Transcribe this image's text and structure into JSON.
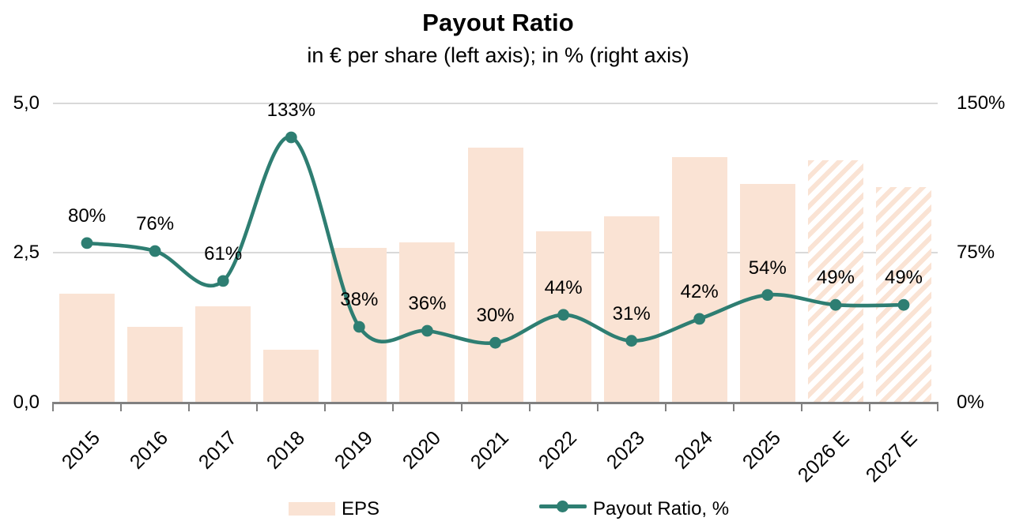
{
  "title": "Payout Ratio",
  "subtitle": "in € per share (left axis); in % (right axis)",
  "left_axis": {
    "ticks": [
      "5,0",
      "2,5",
      "0,0"
    ]
  },
  "right_axis": {
    "ticks": [
      "150%",
      "75%",
      "0%"
    ]
  },
  "legend": {
    "eps_label": "EPS",
    "payout_label": "Payout Ratio, %"
  },
  "colors": {
    "bar": "#FAE3D4",
    "line": "#2E7E72",
    "grid": "#D9D9D9",
    "axis": "#808080",
    "text": "#000000"
  },
  "chart_data": {
    "type": "bar+line combo",
    "categories": [
      "2015",
      "2016",
      "2017",
      "2018",
      "2019",
      "2020",
      "2021",
      "2022",
      "2023",
      "2024",
      "2025",
      "2026 E",
      "2027 E"
    ],
    "series": [
      {
        "name": "EPS",
        "type": "bar",
        "axis": "left",
        "values": [
          1.82,
          1.27,
          1.61,
          0.88,
          2.59,
          2.68,
          4.26,
          2.87,
          3.11,
          4.1,
          3.65,
          4.05,
          3.6
        ],
        "forecast_from_index": 11,
        "forecast_style": "hatched"
      },
      {
        "name": "Payout Ratio, %",
        "type": "line",
        "axis": "right",
        "values": [
          80,
          76,
          61,
          133,
          38,
          36,
          30,
          44,
          31,
          42,
          54,
          49,
          49
        ],
        "labels": [
          "80%",
          "76%",
          "61%",
          "133%",
          "38%",
          "36%",
          "30%",
          "44%",
          "31%",
          "42%",
          "54%",
          "49%",
          "49%"
        ],
        "smooth": true,
        "markers": true
      }
    ],
    "left_axis_range": [
      0,
      5
    ],
    "right_axis_range": [
      0,
      150
    ],
    "left_axis_ticks": [
      0,
      2.5,
      5
    ],
    "right_axis_ticks": [
      0,
      75,
      150
    ],
    "grid": true,
    "legend_position": "bottom"
  }
}
